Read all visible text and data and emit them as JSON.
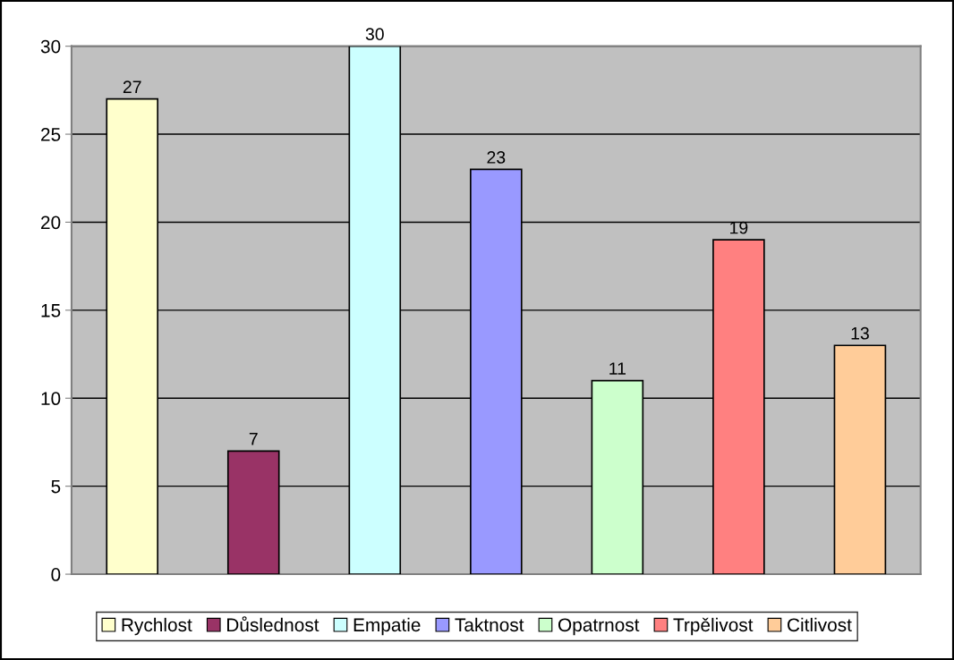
{
  "chart_data": {
    "type": "bar",
    "categories": [
      null
    ],
    "series": [
      {
        "name": "Rychlost",
        "color": "#ffffcc",
        "values": [
          27
        ]
      },
      {
        "name": "Důslednost",
        "color": "#993366",
        "values": [
          7
        ]
      },
      {
        "name": "Empatie",
        "color": "#ccffff",
        "values": [
          30
        ]
      },
      {
        "name": "Taktnost",
        "color": "#9999ff",
        "values": [
          23
        ]
      },
      {
        "name": "Opatrnost",
        "color": "#ccffcc",
        "values": [
          11
        ]
      },
      {
        "name": "Trpělivost",
        "color": "#ff8080",
        "values": [
          19
        ]
      },
      {
        "name": "Citlivost",
        "color": "#ffcc99",
        "values": [
          13
        ]
      }
    ],
    "ylim": [
      0,
      30
    ],
    "yticks": [
      0,
      5,
      10,
      15,
      20,
      25,
      30
    ],
    "grid": "y",
    "legend": "bottom",
    "data_labels": true
  }
}
